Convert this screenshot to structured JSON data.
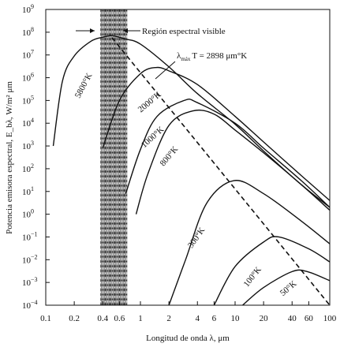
{
  "chart_data": {
    "type": "line",
    "title": "",
    "xlabel": "Longitud de onda λ, μm",
    "ylabel": "Potencia emisora espectral, E_bλ, W/m² μm",
    "xscale": "log",
    "yscale": "log",
    "xlim": [
      0.1,
      100
    ],
    "ylim": [
      0.0001,
      1000000000
    ],
    "x_ticks": [
      {
        "value": 0.1,
        "label": "0.1"
      },
      {
        "value": 0.2,
        "label": "0.2"
      },
      {
        "value": 0.4,
        "label": "0.4"
      },
      {
        "value": 0.6,
        "label": "0.6"
      },
      {
        "value": 1,
        "label": "1"
      },
      {
        "value": 2,
        "label": "2"
      },
      {
        "value": 4,
        "label": "4"
      },
      {
        "value": 6,
        "label": "6"
      },
      {
        "value": 10,
        "label": "10"
      },
      {
        "value": 20,
        "label": "20"
      },
      {
        "value": 40,
        "label": "40"
      },
      {
        "value": 60,
        "label": "60"
      },
      {
        "value": 100,
        "label": "100"
      }
    ],
    "y_ticks": [
      {
        "exp": 9,
        "base": "10",
        "sup": "9"
      },
      {
        "exp": 8,
        "base": "10",
        "sup": "8"
      },
      {
        "exp": 7,
        "base": "10",
        "sup": "7"
      },
      {
        "exp": 6,
        "base": "10",
        "sup": "6"
      },
      {
        "exp": 5,
        "base": "10",
        "sup": "5"
      },
      {
        "exp": 4,
        "base": "10",
        "sup": "4"
      },
      {
        "exp": 3,
        "base": "10",
        "sup": "3"
      },
      {
        "exp": 2,
        "base": "10",
        "sup": "2"
      },
      {
        "exp": 1,
        "base": "10",
        "sup": "1"
      },
      {
        "exp": 0,
        "base": "10",
        "sup": "0"
      },
      {
        "exp": -1,
        "base": "10",
        "sup": "−1"
      },
      {
        "exp": -2,
        "base": "10",
        "sup": "−2"
      },
      {
        "exp": -3,
        "base": "10",
        "sup": "−3"
      },
      {
        "exp": -4,
        "base": "10",
        "sup": "−4"
      }
    ],
    "series": [
      {
        "name": "5800°K",
        "temperature_K": 5800,
        "x": [
          0.12,
          0.15,
          0.2,
          0.3,
          0.4,
          0.5,
          0.7,
          1,
          2,
          4,
          10,
          20,
          50,
          100
        ],
        "y": [
          1000,
          700000,
          9000000,
          40000000,
          60000000,
          70000000,
          50000000,
          30000000,
          3000000,
          200000,
          9000,
          600,
          20,
          2
        ]
      },
      {
        "name": "2000°K",
        "temperature_K": 2000,
        "x": [
          0.4,
          0.6,
          1,
          1.45,
          2,
          4,
          10,
          20,
          50,
          100
        ],
        "y": [
          800,
          100000,
          1500000,
          2800000,
          2000000,
          500000,
          20000,
          1500,
          50,
          4
        ]
      },
      {
        "name": "1000°K",
        "temperature_K": 1000,
        "x": [
          0.7,
          1,
          1.5,
          2.9,
          4,
          10,
          20,
          50,
          100
        ],
        "y": [
          8,
          700,
          20000,
          100000,
          80000,
          10000,
          800,
          30,
          2
        ]
      },
      {
        "name": "800°K",
        "temperature_K": 800,
        "x": [
          0.9,
          1.2,
          2,
          3.6,
          6,
          10,
          20,
          50,
          100
        ],
        "y": [
          1,
          60,
          8000,
          35000,
          25000,
          5000,
          500,
          20,
          1.5
        ]
      },
      {
        "name": "300°K",
        "temperature_K": 300,
        "x": [
          2,
          3,
          5,
          9.7,
          20,
          50,
          100
        ],
        "y": [
          0.0001,
          0.01,
          3,
          30,
          8,
          0.5,
          0.05
        ]
      },
      {
        "name": "100°K",
        "temperature_K": 100,
        "x": [
          6,
          10,
          20,
          29,
          60,
          100
        ],
        "y": [
          0.0001,
          0.005,
          0.06,
          0.1,
          0.03,
          0.008
        ]
      },
      {
        "name": "50°K",
        "temperature_K": 50,
        "x": [
          12,
          20,
          40,
          58,
          100
        ],
        "y": [
          0.0001,
          0.0006,
          0.003,
          0.003,
          0.0012
        ]
      }
    ],
    "wien_line": {
      "label": "λ_max T = 2898 μm°K",
      "label_parts": {
        "lambda": "λ",
        "sub": "máx",
        "rest": "T = 2898 μm°K"
      },
      "x": [
        0.5,
        100
      ],
      "y": [
        58000000,
        0.0001
      ]
    },
    "visible_band": {
      "x_from": 0.4,
      "x_to": 0.7,
      "label": "Región espectral visible"
    },
    "colors": {
      "line": "#111111",
      "band": "#555555",
      "background": "#ffffff"
    }
  }
}
